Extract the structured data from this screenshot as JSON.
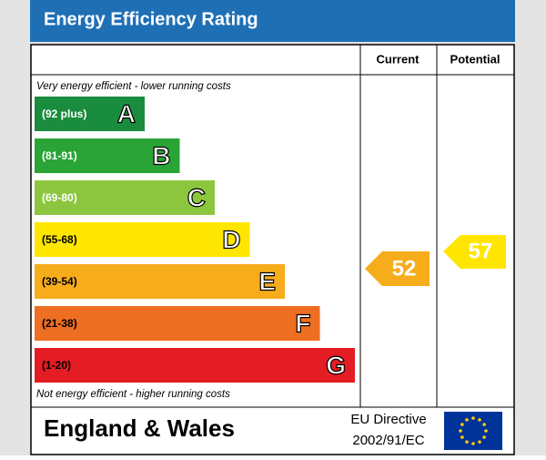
{
  "title": "Energy Efficiency Rating",
  "headers": [
    "Current",
    "Potential"
  ],
  "top_note": "Very energy efficient - lower running costs",
  "bottom_note": "Not energy efficient - higher running costs",
  "bands": [
    {
      "range": "(92 plus)",
      "letter": "A",
      "color": "#1a8c3e"
    },
    {
      "range": "(81-91)",
      "letter": "B",
      "color": "#2aa437"
    },
    {
      "range": "(69-80)",
      "letter": "C",
      "color": "#8cc63e"
    },
    {
      "range": "(55-68)",
      "letter": "D",
      "color": "#ffe600"
    },
    {
      "range": "(39-54)",
      "letter": "E",
      "color": "#f7ac1c"
    },
    {
      "range": "(21-38)",
      "letter": "F",
      "color": "#ee6e22"
    },
    {
      "range": "(1-20)",
      "letter": "G",
      "color": "#e31d23"
    }
  ],
  "current": {
    "value": "52",
    "color": "#f7ac1c"
  },
  "potential": {
    "value": "57",
    "color": "#ffe600"
  },
  "footer": {
    "region": "England & Wales",
    "directive_line1": "EU Directive",
    "directive_line2": "2002/91/EC"
  }
}
